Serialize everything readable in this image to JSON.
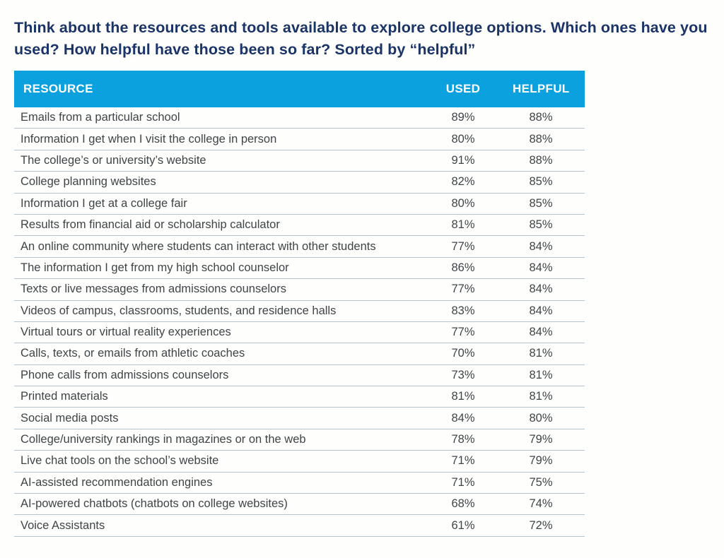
{
  "title": "Think about the resources and tools available to explore college options. Which ones have you used? How helpful have those been so far? Sorted by “helpful”",
  "chart_data": {
    "type": "table",
    "title": "Think about the resources and tools available to explore college options. Which ones have you used? How helpful have those been so far? Sorted by “helpful”",
    "sort": "descending by helpful",
    "columns": {
      "resource": "RESOURCE",
      "used": "USED",
      "helpful": "HELPFUL"
    },
    "rows": [
      {
        "resource": "Emails from a particular school",
        "used": "89%",
        "helpful": "88%"
      },
      {
        "resource": "Information I get when I visit the college in person",
        "used": "80%",
        "helpful": "88%"
      },
      {
        "resource": "The college’s or university’s website",
        "used": "91%",
        "helpful": "88%"
      },
      {
        "resource": "College planning websites",
        "used": "82%",
        "helpful": "85%"
      },
      {
        "resource": "Information I get at a college fair",
        "used": "80%",
        "helpful": "85%"
      },
      {
        "resource": "Results from financial aid or scholarship calculator",
        "used": "81%",
        "helpful": "85%"
      },
      {
        "resource": "An online community where students can interact with other students",
        "used": "77%",
        "helpful": "84%"
      },
      {
        "resource": "The information I get from my high school counselor",
        "used": "86%",
        "helpful": "84%"
      },
      {
        "resource": "Texts or live messages from admissions counselors",
        "used": "77%",
        "helpful": "84%"
      },
      {
        "resource": "Videos of campus, classrooms, students, and residence halls",
        "used": "83%",
        "helpful": "84%"
      },
      {
        "resource": "Virtual tours or virtual reality experiences",
        "used": "77%",
        "helpful": "84%"
      },
      {
        "resource": "Calls, texts, or emails from athletic coaches",
        "used": "70%",
        "helpful": "81%"
      },
      {
        "resource": "Phone calls from admissions counselors",
        "used": "73%",
        "helpful": "81%"
      },
      {
        "resource": "Printed materials",
        "used": "81%",
        "helpful": "81%"
      },
      {
        "resource": "Social media posts",
        "used": "84%",
        "helpful": "80%"
      },
      {
        "resource": "College/university rankings in magazines or on the web",
        "used": "78%",
        "helpful": "79%"
      },
      {
        "resource": "Live chat tools on the school’s website",
        "used": "71%",
        "helpful": "79%"
      },
      {
        "resource": "AI-assisted recommendation engines",
        "used": "71%",
        "helpful": "75%"
      },
      {
        "resource": "AI-powered chatbots (chatbots on college websites)",
        "used": "68%",
        "helpful": "74%"
      },
      {
        "resource": "Voice Assistants",
        "used": "61%",
        "helpful": "72%"
      }
    ]
  },
  "colors": {
    "header_background": "#0AA1DE",
    "header_text": "#FFFFFF",
    "title_text": "#1B3467",
    "row_text": "#3F4447",
    "row_separator": "#B7C4CD",
    "page_background": "#FEFEFD"
  }
}
